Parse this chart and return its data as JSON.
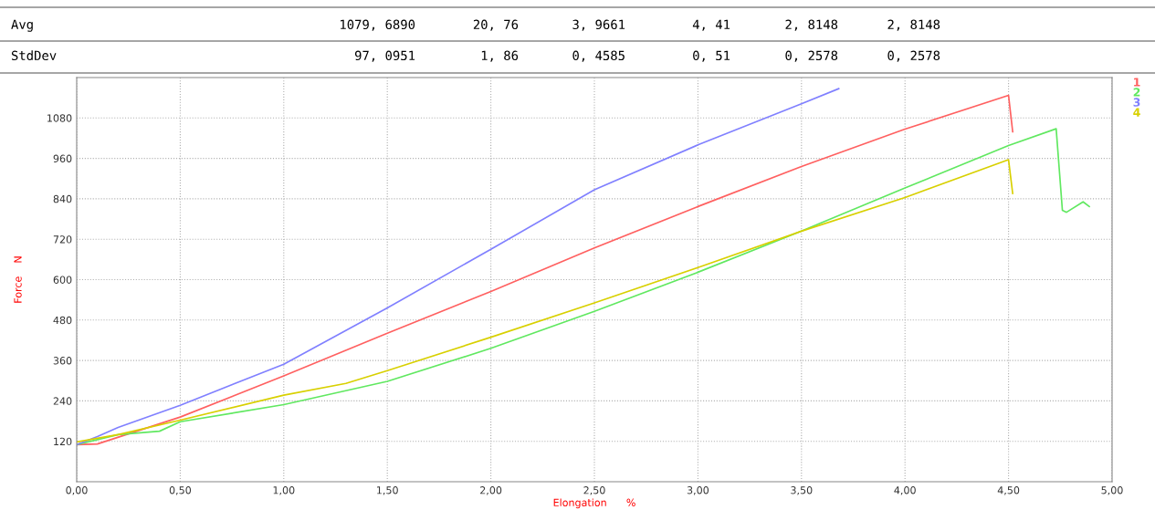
{
  "chart_data": {
    "type": "line",
    "xlabel": "Elongation      %",
    "ylabel": "Force    N",
    "annotations": [
      "Avg",
      "1079, 6890",
      "20, 76",
      "3, 9661",
      "4, 41",
      "2, 8148",
      "2, 8148",
      "StdDev",
      "97, 0951",
      "1, 86",
      "0, 4585",
      "0, 51",
      "0, 2578",
      "0, 2578"
    ],
    "xlim": [
      0,
      5
    ],
    "xticks": [
      {
        "value": 0,
        "label": "0,00"
      },
      {
        "value": 0.5,
        "label": "0,50"
      },
      {
        "value": 1,
        "label": "1,00"
      },
      {
        "value": 1.5,
        "label": "1,50"
      },
      {
        "value": 2,
        "label": "2,00"
      },
      {
        "value": 2.5,
        "label": "2,50"
      },
      {
        "value": 3,
        "label": "3,00"
      },
      {
        "value": 3.5,
        "label": "3,50"
      },
      {
        "value": 4,
        "label": "4,00"
      },
      {
        "value": 4.5,
        "label": "4,50"
      },
      {
        "value": 5,
        "label": "5,00"
      }
    ],
    "ylim": [
      0,
      1200
    ],
    "yticks": [
      120,
      240,
      360,
      480,
      600,
      720,
      840,
      960,
      1080
    ],
    "grid": true,
    "legend": "top right",
    "line_style": "solid",
    "marker": "none",
    "series": [
      {
        "name": "1",
        "color": "#ff6060",
        "x": [
          0,
          0.1,
          0.5,
          1.0,
          1.5,
          2.0,
          2.5,
          3.0,
          3.5,
          4.0,
          4.5,
          4.52
        ],
        "values": [
          110,
          112,
          192,
          314,
          441,
          565,
          694,
          817,
          936,
          1047,
          1147,
          1039
        ]
      },
      {
        "name": "2",
        "color": "#60e860",
        "x": [
          0,
          0.2,
          0.4,
          0.5,
          1.0,
          1.5,
          2.0,
          2.5,
          3.0,
          3.5,
          4.0,
          4.5,
          4.73,
          4.76,
          4.78,
          4.86,
          4.89
        ],
        "values": [
          110,
          140,
          150,
          178,
          229,
          298,
          396,
          506,
          622,
          744,
          872,
          998,
          1048,
          806,
          800,
          831,
          817
        ]
      },
      {
        "name": "3",
        "color": "#8080ff",
        "x": [
          0,
          0.1,
          0.2,
          0.5,
          1.0,
          1.5,
          2.0,
          2.5,
          3.0,
          3.5,
          3.68
        ],
        "values": [
          110,
          134,
          161,
          227,
          349,
          516,
          690,
          867,
          1000,
          1122,
          1167
        ]
      },
      {
        "name": "4",
        "color": "#d8d000",
        "x": [
          0,
          0.2,
          0.5,
          1.0,
          1.3,
          1.5,
          2.0,
          2.5,
          3.0,
          3.5,
          4.0,
          4.5,
          4.52
        ],
        "values": [
          118,
          140,
          183,
          257,
          292,
          330,
          429,
          531,
          636,
          744,
          844,
          956,
          856
        ]
      }
    ]
  }
}
